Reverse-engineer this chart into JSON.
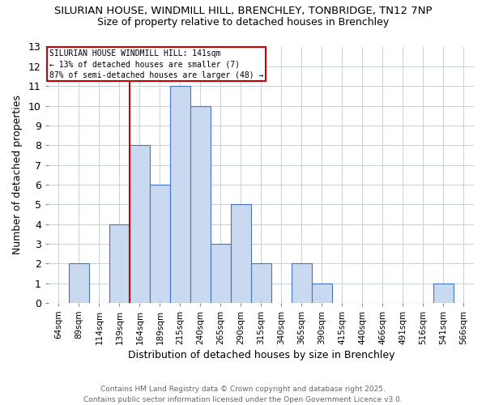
{
  "title_line1": "SILURIAN HOUSE, WINDMILL HILL, BRENCHLEY, TONBRIDGE, TN12 7NP",
  "title_line2": "Size of property relative to detached houses in Brenchley",
  "xlabel": "Distribution of detached houses by size in Brenchley",
  "ylabel": "Number of detached properties",
  "categories": [
    "64sqm",
    "89sqm",
    "114sqm",
    "139sqm",
    "164sqm",
    "189sqm",
    "215sqm",
    "240sqm",
    "265sqm",
    "290sqm",
    "315sqm",
    "340sqm",
    "365sqm",
    "390sqm",
    "415sqm",
    "440sqm",
    "466sqm",
    "491sqm",
    "516sqm",
    "541sqm",
    "566sqm"
  ],
  "values": [
    0,
    2,
    0,
    4,
    8,
    6,
    11,
    10,
    3,
    5,
    2,
    0,
    2,
    1,
    0,
    0,
    0,
    0,
    0,
    1,
    0
  ],
  "ylim": [
    0,
    13
  ],
  "yticks": [
    0,
    1,
    2,
    3,
    4,
    5,
    6,
    7,
    8,
    9,
    10,
    11,
    12,
    13
  ],
  "bar_color": "#c9d9f0",
  "bar_edge_color": "#4472c4",
  "vline_x_index": 3,
  "vline_color": "#cc0000",
  "annotation_text": "SILURIAN HOUSE WINDMILL HILL: 141sqm\n← 13% of detached houses are smaller (7)\n87% of semi-detached houses are larger (48) →",
  "footer_line1": "Contains HM Land Registry data © Crown copyright and database right 2025.",
  "footer_line2": "Contains public sector information licensed under the Open Government Licence v3.0.",
  "background_color": "#ffffff",
  "grid_color": "#c8d0d8"
}
